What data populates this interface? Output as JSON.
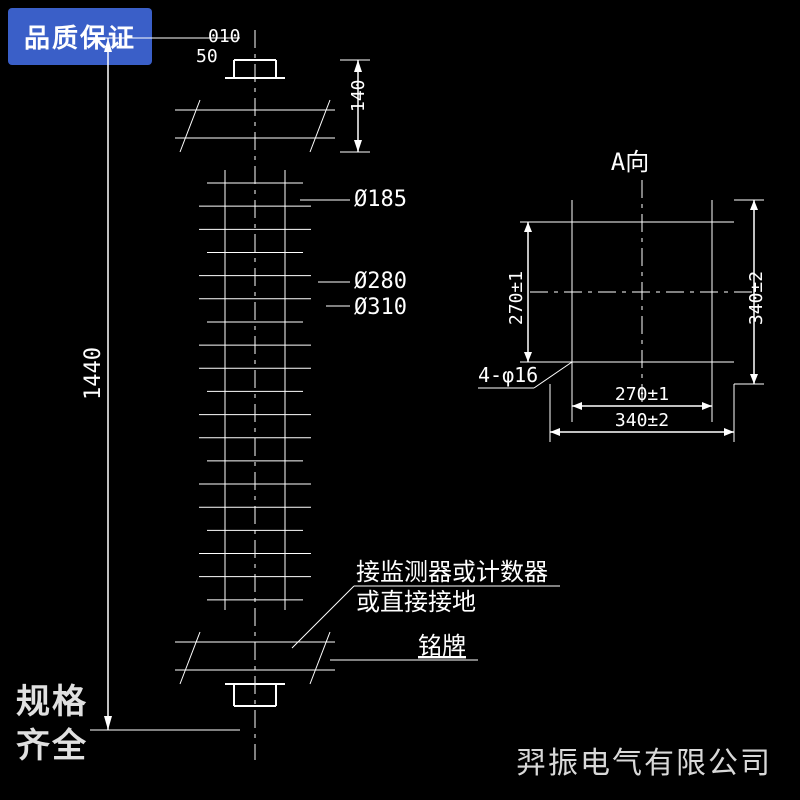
{
  "badge": "品质保证",
  "bottom_left_text_line1": "规格",
  "bottom_left_text_line2": "齐全",
  "company": "羿振电气有限公司",
  "main_view": {
    "total_height_label": "1440",
    "top_dim1": "010",
    "top_dim2": "50",
    "top_right_dim": "140",
    "shed_d1": "Ø185",
    "shed_d2": "Ø280",
    "shed_d3": "Ø310",
    "note1_line1": "接监测器或计数器",
    "note1_line2": "或直接接地",
    "note2": "铭牌",
    "body_color": "#ffffff",
    "shed_count": 19,
    "fontsize_dim_pt": 20,
    "fontsize_note_pt": 22
  },
  "view_a": {
    "title": "A向",
    "plate_outer_label": "340±2",
    "plate_inner_w_label": "270±1",
    "plate_inner_h_label": "270±1",
    "plate_outer_h_label": "340±2",
    "hole_label": "4-φ16",
    "fontsize_pt": 18
  },
  "colors": {
    "background": "#000000",
    "line": "#ffffff",
    "text": "#ffffff",
    "badge_bg": "#3a5fc8",
    "footer_text": "#d9d9d9"
  }
}
